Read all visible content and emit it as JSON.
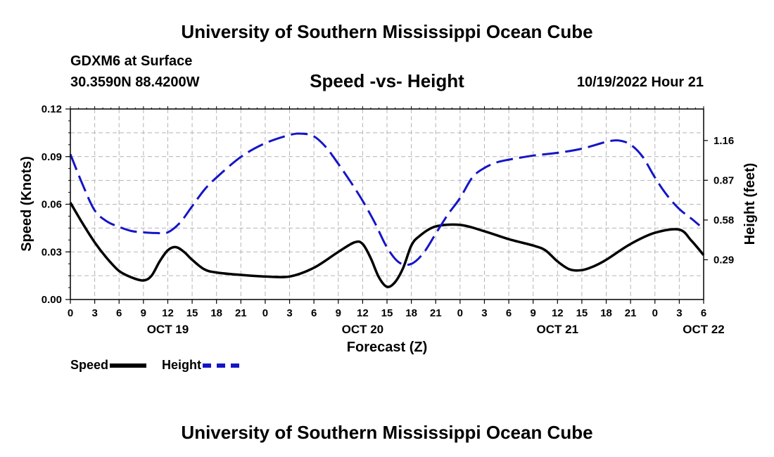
{
  "header": {
    "title": "University of Southern Mississippi Ocean Cube",
    "station": "GDXM6 at Surface",
    "coords": "30.3590N  88.4200W",
    "subtitle": "Speed -vs- Height",
    "datetime": "10/19/2022 Hour 21"
  },
  "footer": {
    "title": "University of Southern Mississippi Ocean Cube"
  },
  "legend": {
    "speed_label": "Speed",
    "height_label": "Height"
  },
  "colors": {
    "speed": "#000000",
    "height": "#1515c8",
    "grid": "#b4b4b4"
  },
  "chart_data": {
    "type": "line",
    "title": "Speed -vs- Height",
    "xlabel": "Forecast (Z)",
    "ylabel_left": "Speed (Knots)",
    "ylabel_right": "Height (feet)",
    "x_unit": "forecast hour",
    "xlim": [
      0,
      78
    ],
    "ylim_left": [
      0,
      0.12
    ],
    "ylim_right_display": [
      0.0,
      1.39
    ],
    "x_ticks": [
      0,
      3,
      6,
      9,
      12,
      15,
      18,
      21,
      24,
      27,
      30,
      33,
      36,
      39,
      42,
      45,
      48,
      51,
      54,
      57,
      60,
      63,
      66,
      69,
      72,
      75,
      78
    ],
    "x_tick_labels": [
      "0",
      "3",
      "6",
      "9",
      "12",
      "15",
      "18",
      "21",
      "0",
      "3",
      "6",
      "9",
      "12",
      "15",
      "18",
      "21",
      "0",
      "3",
      "6",
      "9",
      "12",
      "15",
      "18",
      "21",
      "0",
      "3",
      "6"
    ],
    "date_labels": [
      {
        "x": 12,
        "label": "OCT 19"
      },
      {
        "x": 36,
        "label": "OCT 20"
      },
      {
        "x": 60,
        "label": "OCT 21"
      },
      {
        "x": 78,
        "label": "OCT 22"
      }
    ],
    "y_left_ticks": [
      0.0,
      0.03,
      0.06,
      0.09,
      0.12
    ],
    "y_left_tick_labels": [
      "0.00",
      "0.03",
      "0.06",
      "0.09",
      "0.12"
    ],
    "y_right_ticks": [
      0.29,
      0.58,
      0.87,
      1.16
    ],
    "y_right_tick_labels": [
      "0.29",
      "0.58",
      "0.87",
      "1.16"
    ],
    "grid": true,
    "series": [
      {
        "name": "Speed",
        "axis": "left",
        "style": "solid",
        "x": [
          0,
          1.5,
          3,
          4.5,
          6,
          7.5,
          9,
          10,
          11,
          12,
          13,
          14,
          15,
          16.5,
          18,
          21,
          24,
          27,
          30,
          33,
          35,
          36,
          37,
          38,
          39,
          40,
          41,
          42,
          43,
          45,
          48,
          51,
          54,
          57,
          58.5,
          60,
          61.5,
          63,
          64.5,
          66,
          69,
          72,
          75,
          76.5,
          78
        ],
        "values": [
          0.061,
          0.048,
          0.036,
          0.026,
          0.018,
          0.014,
          0.012,
          0.015,
          0.024,
          0.031,
          0.033,
          0.03,
          0.025,
          0.019,
          0.017,
          0.0155,
          0.0145,
          0.0145,
          0.02,
          0.03,
          0.036,
          0.035,
          0.026,
          0.014,
          0.008,
          0.011,
          0.02,
          0.034,
          0.04,
          0.046,
          0.047,
          0.043,
          0.038,
          0.034,
          0.031,
          0.024,
          0.019,
          0.0185,
          0.021,
          0.025,
          0.035,
          0.042,
          0.044,
          0.037,
          0.028
        ]
      },
      {
        "name": "Height",
        "axis": "right",
        "style": "dashed",
        "x": [
          0,
          1.5,
          3,
          4.5,
          6,
          7.5,
          9,
          10.5,
          12,
          13.5,
          15,
          16.5,
          18,
          21,
          24,
          27,
          28.5,
          30,
          31.5,
          33,
          34.5,
          36,
          37.5,
          39,
          40.5,
          42,
          43.5,
          45,
          46.5,
          48,
          49.5,
          51,
          52.5,
          54,
          57,
          60,
          63,
          66,
          67.5,
          69,
          70.5,
          72,
          73.5,
          75,
          76.5,
          77.5
        ],
        "values": [
          1.06,
          0.84,
          0.65,
          0.57,
          0.53,
          0.5,
          0.49,
          0.485,
          0.49,
          0.56,
          0.68,
          0.8,
          0.89,
          1.04,
          1.14,
          1.2,
          1.21,
          1.19,
          1.11,
          0.99,
          0.86,
          0.72,
          0.56,
          0.38,
          0.27,
          0.26,
          0.34,
          0.48,
          0.62,
          0.74,
          0.89,
          0.96,
          1.0,
          1.02,
          1.05,
          1.07,
          1.1,
          1.15,
          1.16,
          1.13,
          1.04,
          0.89,
          0.76,
          0.66,
          0.59,
          0.54
        ]
      }
    ]
  }
}
